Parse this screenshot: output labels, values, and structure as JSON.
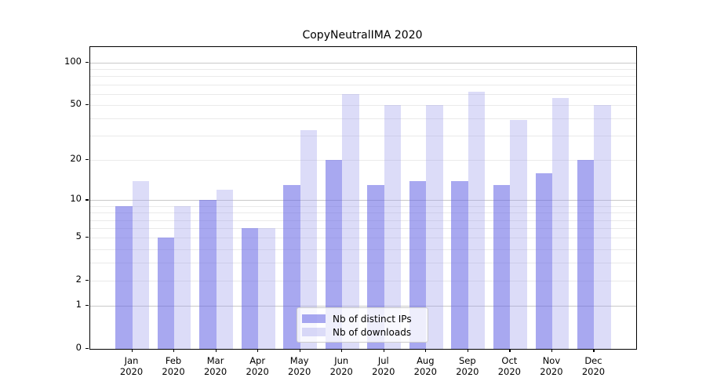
{
  "figure": {
    "background": "#ffffff",
    "axis_color": "#000000",
    "text_color": "#000000"
  },
  "chart_data": {
    "type": "bar",
    "title": "CopyNeutralIMA 2020",
    "categories": [
      "Jan 2020",
      "Feb 2020",
      "Mar 2020",
      "Apr 2020",
      "May 2020",
      "Jun 2020",
      "Jul 2020",
      "Aug 2020",
      "Sep 2020",
      "Oct 2020",
      "Nov 2020",
      "Dec 2020"
    ],
    "series": [
      {
        "name": "Nb of distinct IPs",
        "color": "#a8a8f0",
        "fill": "rgba(97,97,228,0.55)",
        "values": [
          9,
          5,
          10,
          6,
          13,
          20,
          13,
          14,
          14,
          13,
          16,
          20
        ]
      },
      {
        "name": "Nb of downloads",
        "color": "#dcdcf8",
        "fill": "rgba(155,155,235,0.35)",
        "values": [
          14,
          9,
          12,
          6,
          33,
          60,
          50,
          50,
          62,
          39,
          56,
          50
        ]
      }
    ],
    "xlabel": "",
    "ylabel": "",
    "yscale": "log1p",
    "ylim": [
      0,
      129
    ],
    "yticks": [
      0,
      1,
      2,
      5,
      10,
      20,
      50,
      100
    ],
    "grid": {
      "on": true,
      "major": [
        1,
        10,
        100
      ],
      "minor": [
        2,
        3,
        4,
        5,
        6,
        7,
        8,
        9,
        20,
        30,
        40,
        50,
        60,
        70,
        80,
        90
      ],
      "major_color": "#c9c9c9",
      "minor_color": "#eaeaea"
    },
    "legend": {
      "position": "lower center",
      "border_color": "#cccccc",
      "background": "rgba(255,255,255,0.8)"
    },
    "bar_group_width_fraction": 0.8
  }
}
